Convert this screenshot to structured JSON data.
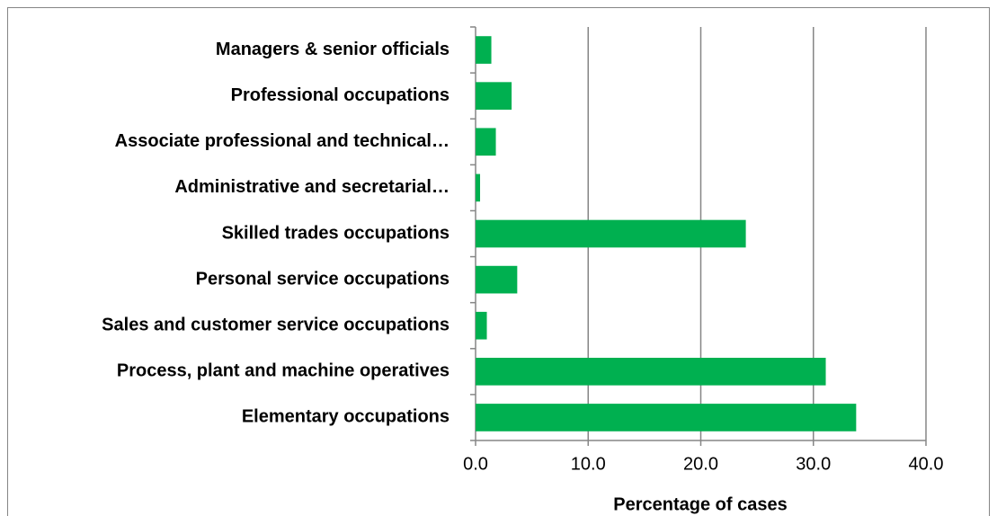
{
  "chart_data": {
    "type": "bar",
    "orientation": "horizontal",
    "x_label": "Percentage of cases",
    "categories": [
      "Managers & senior officials",
      "Professional occupations",
      "Associate professional and technical…",
      "Administrative and secretarial…",
      "Skilled trades occupations",
      "Personal service occupations",
      "Sales and customer service occupations",
      "Process, plant and machine operatives",
      "Elementary occupations"
    ],
    "values": [
      1.4,
      3.2,
      1.8,
      0.4,
      24.0,
      3.7,
      1.0,
      31.1,
      33.8
    ],
    "color": "#00b050",
    "xlim": [
      0,
      40
    ],
    "xticks": [
      {
        "value": 0,
        "label": "0.0"
      },
      {
        "value": 10,
        "label": "10.0"
      },
      {
        "value": 20,
        "label": "20.0"
      },
      {
        "value": 30,
        "label": "30.0"
      },
      {
        "value": 40,
        "label": "40.0"
      }
    ],
    "grid": true
  }
}
